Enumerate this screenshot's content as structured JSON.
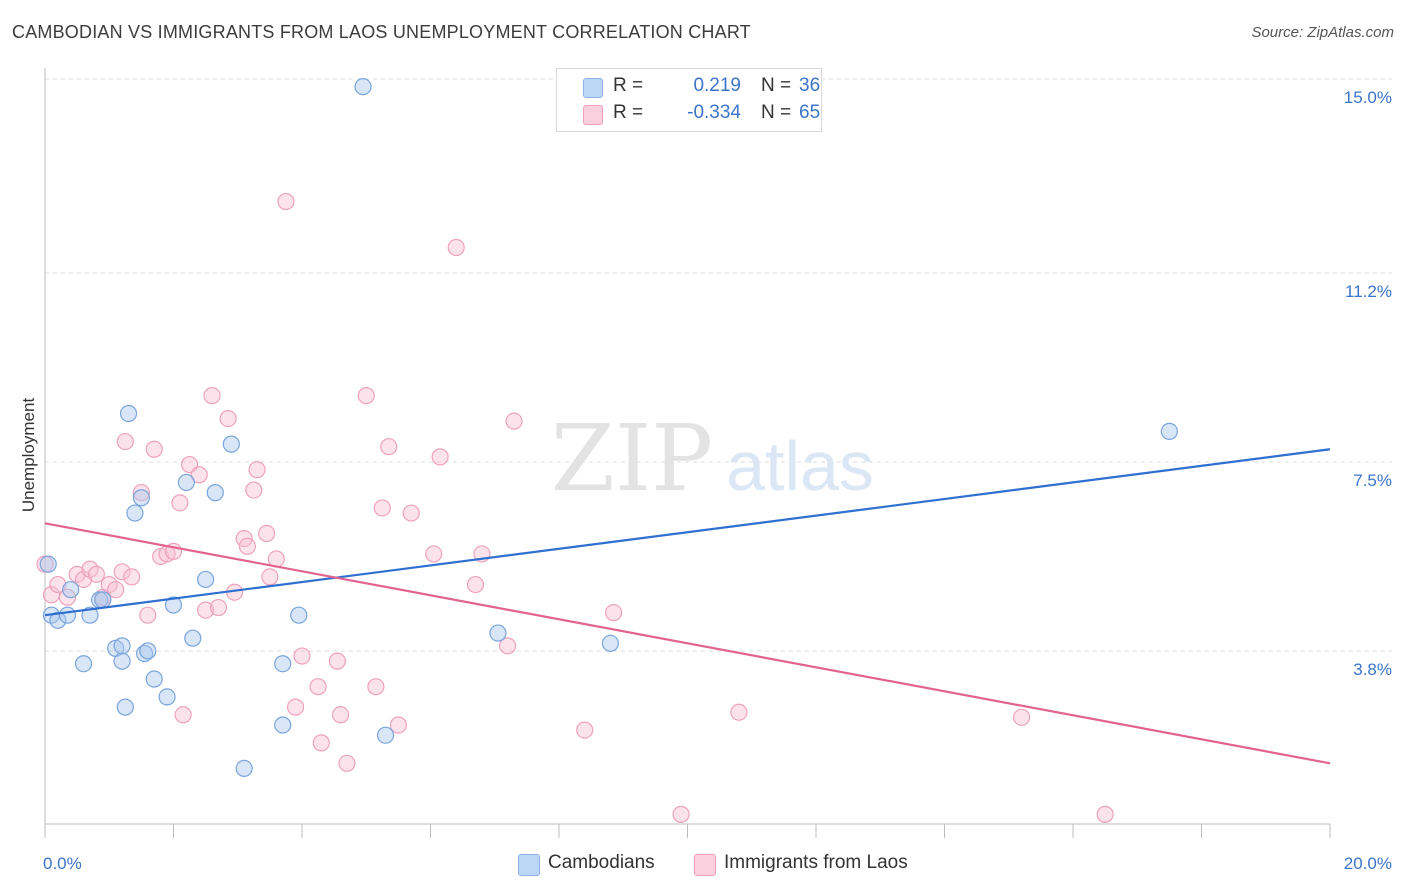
{
  "title": "CAMBODIAN VS IMMIGRANTS FROM LAOS UNEMPLOYMENT CORRELATION CHART",
  "source": "Source: ZipAtlas.com",
  "watermark": {
    "zip": "ZIP",
    "atlas": "atlas"
  },
  "legend": {
    "rows": [
      {
        "r_label": "R =",
        "r_value": "0.219",
        "n_label": "N =",
        "n_value": "36"
      },
      {
        "r_label": "R =",
        "r_value": "-0.334",
        "n_label": "N =",
        "n_value": "65"
      }
    ]
  },
  "bottom_legend": {
    "cambodians": "Cambodians",
    "laos": "Immigrants from Laos"
  },
  "chart_data": {
    "type": "scatter",
    "xlabel": "",
    "ylabel": "Unemployment",
    "xlim": [
      0,
      20
    ],
    "ylim": [
      0,
      15.4
    ],
    "x_tick_labels": [
      "0.0%",
      "20.0%"
    ],
    "y_ticks": [
      3.8,
      7.5,
      11.2,
      15.0
    ],
    "y_tick_labels": [
      "3.8%",
      "7.5%",
      "11.2%",
      "15.0%"
    ],
    "grid": true,
    "colors": {
      "cambodians": "#a9c8ee",
      "cambodians_line": "#2f6fd0",
      "laos": "#f5b7cb",
      "laos_line": "#e2638f"
    },
    "series": [
      {
        "name": "Cambodians",
        "trend": [
          [
            0,
            4.5
          ],
          [
            20,
            7.75
          ]
        ],
        "points": [
          [
            0.05,
            5.5
          ],
          [
            0.1,
            4.5
          ],
          [
            0.2,
            4.4
          ],
          [
            0.35,
            4.5
          ],
          [
            0.4,
            5.0
          ],
          [
            0.6,
            3.55
          ],
          [
            0.7,
            4.5
          ],
          [
            0.85,
            4.8
          ],
          [
            0.9,
            4.8
          ],
          [
            1.1,
            3.85
          ],
          [
            1.2,
            3.6
          ],
          [
            1.2,
            3.9
          ],
          [
            1.25,
            2.7
          ],
          [
            1.3,
            8.45
          ],
          [
            1.4,
            6.5
          ],
          [
            1.5,
            6.8
          ],
          [
            1.55,
            3.75
          ],
          [
            1.6,
            3.8
          ],
          [
            1.7,
            3.25
          ],
          [
            1.9,
            2.9
          ],
          [
            2.0,
            4.7
          ],
          [
            2.2,
            7.1
          ],
          [
            2.3,
            4.05
          ],
          [
            2.5,
            5.2
          ],
          [
            2.65,
            6.9
          ],
          [
            2.9,
            7.85
          ],
          [
            3.1,
            1.5
          ],
          [
            3.7,
            3.55
          ],
          [
            3.7,
            2.35
          ],
          [
            3.95,
            4.5
          ],
          [
            4.95,
            14.85
          ],
          [
            5.3,
            2.15
          ],
          [
            7.05,
            4.15
          ],
          [
            8.8,
            3.95
          ],
          [
            17.5,
            8.1
          ]
        ]
      },
      {
        "name": "Immigrants from Laos",
        "trend": [
          [
            0,
            6.3
          ],
          [
            20,
            1.6
          ]
        ],
        "points": [
          [
            0.0,
            5.5
          ],
          [
            0.1,
            4.9
          ],
          [
            0.2,
            5.1
          ],
          [
            0.35,
            4.85
          ],
          [
            0.5,
            5.3
          ],
          [
            0.6,
            5.2
          ],
          [
            0.7,
            5.4
          ],
          [
            0.8,
            5.3
          ],
          [
            0.9,
            4.85
          ],
          [
            1.0,
            5.1
          ],
          [
            1.1,
            5.0
          ],
          [
            1.2,
            5.35
          ],
          [
            1.25,
            7.9
          ],
          [
            1.35,
            5.25
          ],
          [
            1.5,
            6.9
          ],
          [
            1.6,
            4.5
          ],
          [
            1.7,
            7.75
          ],
          [
            1.8,
            5.65
          ],
          [
            1.9,
            5.7
          ],
          [
            2.0,
            5.75
          ],
          [
            2.1,
            6.7
          ],
          [
            2.15,
            2.55
          ],
          [
            2.25,
            7.45
          ],
          [
            2.4,
            7.25
          ],
          [
            2.5,
            4.6
          ],
          [
            2.6,
            8.8
          ],
          [
            2.7,
            4.65
          ],
          [
            2.85,
            8.35
          ],
          [
            2.95,
            4.95
          ],
          [
            3.1,
            6.0
          ],
          [
            3.15,
            5.85
          ],
          [
            3.25,
            6.95
          ],
          [
            3.3,
            7.35
          ],
          [
            3.45,
            6.1
          ],
          [
            3.5,
            5.25
          ],
          [
            3.6,
            5.6
          ],
          [
            3.75,
            12.6
          ],
          [
            3.9,
            2.7
          ],
          [
            4.0,
            3.7
          ],
          [
            4.25,
            3.1
          ],
          [
            4.3,
            2.0
          ],
          [
            4.55,
            3.6
          ],
          [
            4.6,
            2.55
          ],
          [
            4.7,
            1.6
          ],
          [
            5.0,
            8.8
          ],
          [
            5.15,
            3.1
          ],
          [
            5.25,
            6.6
          ],
          [
            5.35,
            7.8
          ],
          [
            5.5,
            2.35
          ],
          [
            5.7,
            6.5
          ],
          [
            6.05,
            5.7
          ],
          [
            6.15,
            7.6
          ],
          [
            6.4,
            11.7
          ],
          [
            6.7,
            5.1
          ],
          [
            6.8,
            5.7
          ],
          [
            7.2,
            3.9
          ],
          [
            7.3,
            8.3
          ],
          [
            8.4,
            2.25
          ],
          [
            8.85,
            4.55
          ],
          [
            9.9,
            0.6
          ],
          [
            10.8,
            2.6
          ],
          [
            15.2,
            2.5
          ],
          [
            16.5,
            0.6
          ]
        ]
      }
    ]
  }
}
